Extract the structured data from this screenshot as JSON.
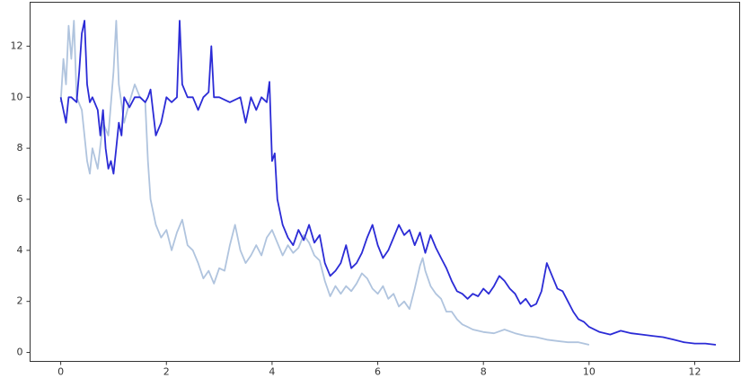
{
  "chart_data": {
    "type": "line",
    "xlim": [
      -0.58,
      12.85
    ],
    "ylim": [
      -0.35,
      13.72
    ],
    "xticks": [
      0,
      2,
      4,
      6,
      8,
      10,
      12
    ],
    "yticks": [
      0,
      2,
      4,
      6,
      8,
      10,
      12
    ],
    "series": [
      {
        "color": "#b0c4de",
        "x": [
          0,
          0.05,
          0.1,
          0.15,
          0.2,
          0.25,
          0.3,
          0.4,
          0.5,
          0.55,
          0.6,
          0.7,
          0.8,
          0.9,
          1.0,
          1.05,
          1.1,
          1.2,
          1.3,
          1.4,
          1.5,
          1.6,
          1.65,
          1.7,
          1.8,
          1.9,
          2.0,
          2.1,
          2.2,
          2.3,
          2.4,
          2.5,
          2.6,
          2.7,
          2.8,
          2.9,
          3.0,
          3.1,
          3.2,
          3.3,
          3.4,
          3.5,
          3.6,
          3.7,
          3.8,
          3.9,
          4.0,
          4.1,
          4.2,
          4.3,
          4.4,
          4.5,
          4.6,
          4.7,
          4.8,
          4.9,
          5.0,
          5.1,
          5.2,
          5.3,
          5.4,
          5.5,
          5.6,
          5.7,
          5.8,
          5.9,
          6.0,
          6.1,
          6.2,
          6.3,
          6.4,
          6.5,
          6.6,
          6.7,
          6.8,
          6.85,
          6.9,
          7.0,
          7.1,
          7.2,
          7.3,
          7.4,
          7.5,
          7.6,
          7.7,
          7.8,
          8.0,
          8.2,
          8.4,
          8.6,
          8.8,
          9.0,
          9.2,
          9.4,
          9.6,
          9.8,
          10.0
        ],
        "values": [
          9.8,
          11.5,
          10.5,
          12.8,
          11.5,
          13,
          10,
          9.5,
          7.5,
          7,
          8,
          7.2,
          9,
          8.5,
          11,
          13,
          10.5,
          9,
          9.8,
          10.5,
          10,
          9.8,
          7.5,
          6,
          5,
          4.5,
          4.8,
          4,
          4.7,
          5.2,
          4.2,
          4,
          3.5,
          2.9,
          3.2,
          2.7,
          3.3,
          3.2,
          4.2,
          5,
          4,
          3.5,
          3.8,
          4.2,
          3.8,
          4.5,
          4.8,
          4.3,
          3.8,
          4.2,
          3.9,
          4.1,
          4.6,
          4.3,
          3.8,
          3.6,
          2.8,
          2.2,
          2.6,
          2.3,
          2.6,
          2.4,
          2.7,
          3.1,
          2.9,
          2.5,
          2.3,
          2.6,
          2.1,
          2.3,
          1.8,
          2.0,
          1.7,
          2.5,
          3.4,
          3.7,
          3.2,
          2.6,
          2.3,
          2.1,
          1.6,
          1.6,
          1.3,
          1.1,
          1.0,
          0.9,
          0.8,
          0.75,
          0.9,
          0.75,
          0.65,
          0.6,
          0.5,
          0.45,
          0.4,
          0.4,
          0.3
        ]
      },
      {
        "color": "#2b2bd6",
        "x": [
          0,
          0.1,
          0.15,
          0.2,
          0.3,
          0.35,
          0.4,
          0.45,
          0.5,
          0.55,
          0.6,
          0.7,
          0.75,
          0.8,
          0.85,
          0.9,
          0.95,
          1.0,
          1.05,
          1.1,
          1.15,
          1.2,
          1.3,
          1.4,
          1.5,
          1.6,
          1.65,
          1.7,
          1.8,
          1.9,
          2.0,
          2.1,
          2.2,
          2.25,
          2.3,
          2.4,
          2.5,
          2.6,
          2.7,
          2.8,
          2.85,
          2.9,
          3.0,
          3.2,
          3.4,
          3.5,
          3.6,
          3.7,
          3.8,
          3.9,
          3.95,
          4.0,
          4.05,
          4.1,
          4.2,
          4.3,
          4.4,
          4.5,
          4.6,
          4.7,
          4.8,
          4.9,
          5.0,
          5.1,
          5.2,
          5.3,
          5.4,
          5.5,
          5.6,
          5.7,
          5.8,
          5.9,
          6.0,
          6.1,
          6.2,
          6.3,
          6.4,
          6.5,
          6.6,
          6.7,
          6.8,
          6.9,
          7.0,
          7.1,
          7.2,
          7.3,
          7.4,
          7.5,
          7.6,
          7.7,
          7.8,
          7.9,
          8.0,
          8.1,
          8.2,
          8.3,
          8.4,
          8.5,
          8.6,
          8.7,
          8.8,
          8.9,
          9.0,
          9.1,
          9.2,
          9.3,
          9.4,
          9.5,
          9.6,
          9.7,
          9.8,
          9.9,
          10.0,
          10.2,
          10.4,
          10.6,
          10.8,
          11.0,
          11.2,
          11.4,
          11.6,
          11.8,
          12.0,
          12.2,
          12.4
        ],
        "values": [
          10,
          9,
          10,
          10,
          9.8,
          11,
          12.5,
          13,
          10.5,
          9.8,
          10,
          9.5,
          8.5,
          9.5,
          8,
          7.2,
          7.5,
          7,
          8,
          9,
          8.5,
          10,
          9.6,
          10,
          10,
          9.8,
          10,
          10.3,
          8.5,
          9,
          10,
          9.8,
          10,
          13,
          10.5,
          10,
          10,
          9.5,
          10,
          10.2,
          12,
          10,
          10,
          9.8,
          10,
          9,
          10,
          9.5,
          10,
          9.8,
          10.6,
          7.5,
          7.8,
          6,
          5,
          4.5,
          4.2,
          4.8,
          4.4,
          5,
          4.3,
          4.6,
          3.5,
          3,
          3.2,
          3.5,
          4.2,
          3.3,
          3.5,
          3.9,
          4.5,
          5.0,
          4.2,
          3.7,
          4,
          4.5,
          5,
          4.6,
          4.8,
          4.2,
          4.7,
          3.9,
          4.6,
          4.1,
          3.7,
          3.3,
          2.8,
          2.4,
          2.3,
          2.1,
          2.3,
          2.2,
          2.5,
          2.3,
          2.6,
          3.0,
          2.8,
          2.5,
          2.3,
          1.9,
          2.1,
          1.8,
          1.9,
          2.4,
          3.5,
          3.0,
          2.5,
          2.4,
          2.0,
          1.6,
          1.3,
          1.2,
          1.0,
          0.8,
          0.7,
          0.85,
          0.75,
          0.7,
          0.65,
          0.6,
          0.5,
          0.4,
          0.35,
          0.35,
          0.3
        ]
      }
    ]
  }
}
